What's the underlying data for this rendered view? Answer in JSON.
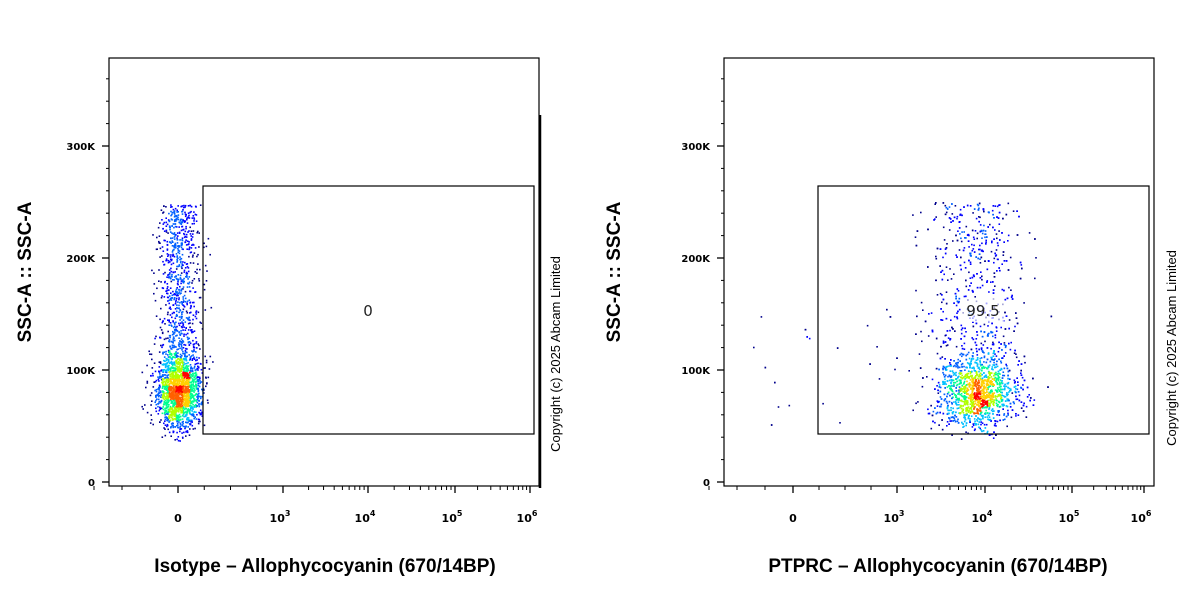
{
  "colors": {
    "density": [
      "#00008b",
      "#0000ff",
      "#0060ff",
      "#00c0ff",
      "#00ff90",
      "#b0ff00",
      "#ffd000",
      "#ff6000",
      "#ff0000"
    ],
    "axis": "#000000"
  },
  "chart_data": [
    {
      "type": "scatter",
      "subtype": "flow-cytometry density dot plot",
      "xlabel": "Isotype – Allophycocyanin (670/14BP)",
      "ylabel": "SSC-A :: SSC-A",
      "x_scale": "biexponential",
      "x_tick_labels": [
        {
          "base": "0",
          "exp": ""
        },
        {
          "base": "10",
          "exp": "3"
        },
        {
          "base": "10",
          "exp": "4"
        },
        {
          "base": "10",
          "exp": "5"
        },
        {
          "base": "10",
          "exp": "6"
        }
      ],
      "y_tick_labels": [
        "0",
        "100K",
        "200K",
        "300K"
      ],
      "ylim": [
        -20000,
        370000
      ],
      "gate": {
        "label": "0",
        "x_range": [
          200,
          1000000
        ],
        "y_range": [
          42000,
          256000
        ]
      },
      "populations": [
        {
          "x_center": 0,
          "y_center": 82000,
          "y_min": 40000,
          "y_max": 248000,
          "note": "all events near 0 (negative)"
        }
      ],
      "copyright": "Copyright (c) 2025 Abcam Limited"
    },
    {
      "type": "scatter",
      "subtype": "flow-cytometry density dot plot",
      "xlabel": "PTPRC – Allophycocyanin (670/14BP)",
      "ylabel": "SSC-A :: SSC-A",
      "x_scale": "biexponential",
      "x_tick_labels": [
        {
          "base": "0",
          "exp": ""
        },
        {
          "base": "10",
          "exp": "3"
        },
        {
          "base": "10",
          "exp": "4"
        },
        {
          "base": "10",
          "exp": "5"
        },
        {
          "base": "10",
          "exp": "6"
        }
      ],
      "y_tick_labels": [
        "0",
        "100K",
        "200K",
        "300K"
      ],
      "ylim": [
        -20000,
        370000
      ],
      "gate": {
        "label": "99.5",
        "x_range": [
          200,
          1000000
        ],
        "y_range": [
          42000,
          256000
        ]
      },
      "populations": [
        {
          "x_center": 8000,
          "y_center": 80000,
          "y_min": 45000,
          "y_max": 250000,
          "note": "positive population"
        }
      ],
      "copyright": "Copyright (c) 2025 Abcam Limited"
    }
  ]
}
